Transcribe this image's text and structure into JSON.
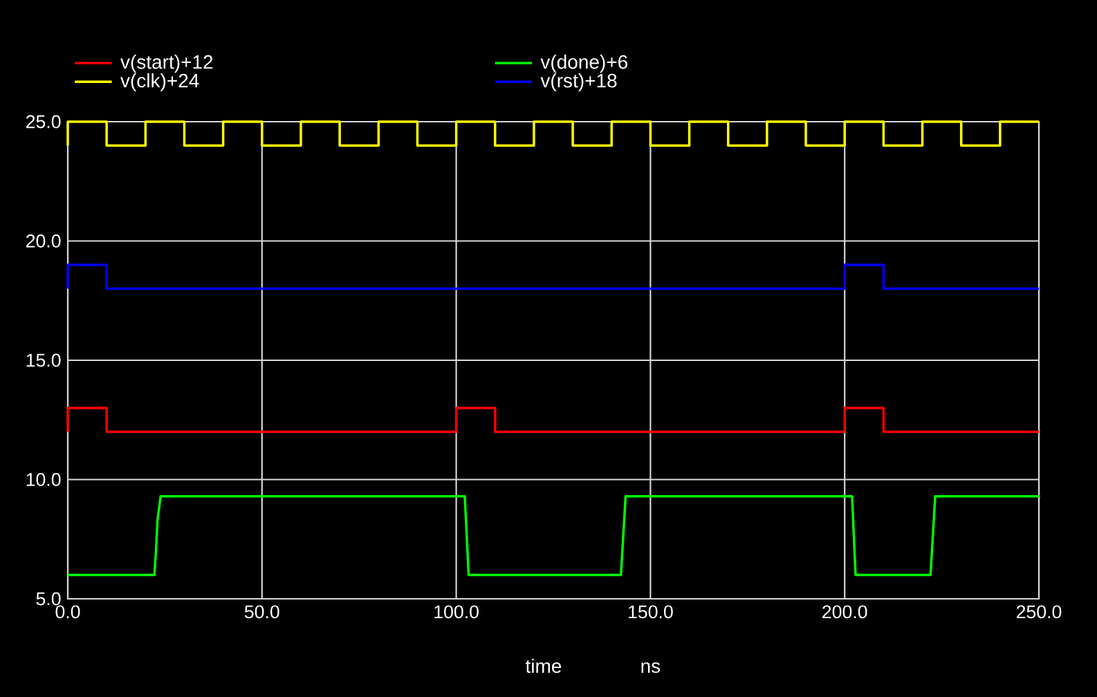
{
  "chart_data": {
    "type": "line",
    "xlabel": "time",
    "annotations": [
      "ns"
    ],
    "xlim": [
      0,
      250
    ],
    "ylim": [
      5,
      25
    ],
    "xticks": [
      {
        "value": 0,
        "label": "0.0"
      },
      {
        "value": 50,
        "label": "50.0"
      },
      {
        "value": 100,
        "label": "100.0"
      },
      {
        "value": 150,
        "label": "150.0"
      },
      {
        "value": 200,
        "label": "200.0"
      },
      {
        "value": 250,
        "label": "250.0"
      }
    ],
    "yticks": [
      {
        "value": 5,
        "label": "5.0"
      },
      {
        "value": 10,
        "label": "10.0"
      },
      {
        "value": 15,
        "label": "15.0"
      },
      {
        "value": 20,
        "label": "20.0"
      },
      {
        "value": 25,
        "label": "25.0"
      }
    ],
    "grid": true,
    "legend": "top",
    "marker": "none",
    "line_style": "solid",
    "series": [
      {
        "name": "v(start)+12",
        "color": "#ff0000",
        "x": [
          0,
          0,
          10,
          10,
          100,
          100,
          110,
          110,
          200,
          200,
          210,
          210,
          250
        ],
        "values": [
          12,
          13,
          13,
          12,
          12,
          13,
          13,
          12,
          12,
          13,
          13,
          12,
          12
        ]
      },
      {
        "name": "v(done)+6",
        "color": "#00ff00",
        "x": [
          0,
          22.3,
          22.7,
          23.1,
          23.9,
          102.2,
          103.2,
          142.4,
          143.6,
          201.9,
          202.8,
          222.1,
          223.3,
          250
        ],
        "values": [
          6,
          6,
          7.0,
          8.3,
          9.3,
          9.3,
          6,
          6,
          9.3,
          9.3,
          6,
          6,
          9.3,
          9.3
        ]
      },
      {
        "name": "v(clk)+24",
        "color": "#ffff00",
        "x": [
          0,
          0,
          10,
          10,
          20,
          20,
          30,
          30,
          40,
          40,
          50,
          50,
          60,
          60,
          70,
          70,
          80,
          80,
          90,
          90,
          100,
          100,
          110,
          110,
          120,
          120,
          130,
          130,
          140,
          140,
          150,
          150,
          160,
          160,
          170,
          170,
          180,
          180,
          190,
          190,
          200,
          200,
          210,
          210,
          220,
          220,
          230,
          230,
          240,
          240,
          250
        ],
        "values": [
          24,
          25,
          25,
          24,
          24,
          25,
          25,
          24,
          24,
          25,
          25,
          24,
          24,
          25,
          25,
          24,
          24,
          25,
          25,
          24,
          24,
          25,
          25,
          24,
          24,
          25,
          25,
          24,
          24,
          25,
          25,
          24,
          24,
          25,
          25,
          24,
          24,
          25,
          25,
          24,
          24,
          25,
          25,
          24,
          24,
          25,
          25,
          24,
          24,
          25,
          25
        ]
      },
      {
        "name": "v(rst)+18",
        "color": "#0000ff",
        "x": [
          0,
          0,
          10,
          10,
          200,
          200,
          210,
          210,
          250
        ],
        "values": [
          18,
          19,
          19,
          18,
          18,
          19,
          19,
          18,
          18
        ]
      }
    ]
  }
}
